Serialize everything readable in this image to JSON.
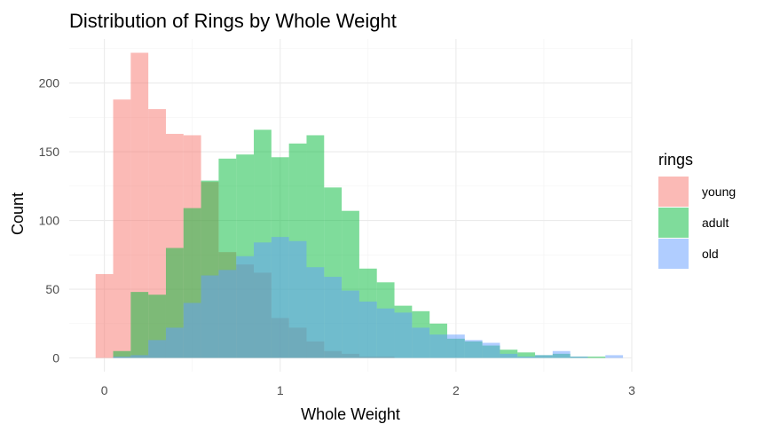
{
  "chart_data": {
    "type": "bar",
    "subtype": "overlaid-histogram",
    "title": "Distribution of Rings by Whole Weight",
    "xlabel": "Whole Weight",
    "ylabel": "Count",
    "xlim": [
      -0.2,
      3.0
    ],
    "ylim": [
      -10,
      232
    ],
    "x_ticks": [
      0,
      1,
      2,
      3
    ],
    "y_ticks": [
      0,
      50,
      100,
      150,
      200
    ],
    "bin_width": 0.1,
    "bin_start": -0.05,
    "grid": true,
    "legend": {
      "title": "rings",
      "position": "right"
    },
    "series": [
      {
        "name": "young",
        "color": "#F8766D",
        "values": [
          61,
          188,
          222,
          181,
          163,
          162,
          128,
          77,
          68,
          62,
          29,
          22,
          12,
          5,
          3,
          1,
          1,
          0,
          0,
          0,
          0,
          0,
          0,
          0,
          0,
          0,
          0,
          0,
          0,
          0
        ]
      },
      {
        "name": "adult",
        "color": "#00BA38",
        "values": [
          0,
          5,
          48,
          46,
          80,
          109,
          129,
          145,
          148,
          166,
          146,
          156,
          162,
          124,
          107,
          65,
          55,
          38,
          34,
          25,
          14,
          12,
          9,
          6,
          4,
          2,
          3,
          1,
          1,
          0
        ]
      },
      {
        "name": "old",
        "color": "#619CFF",
        "values": [
          0,
          1,
          2,
          13,
          22,
          40,
          60,
          64,
          74,
          84,
          88,
          85,
          66,
          59,
          49,
          41,
          36,
          33,
          22,
          17,
          17,
          13,
          11,
          3,
          1,
          2,
          5,
          1,
          0,
          2
        ]
      }
    ]
  }
}
